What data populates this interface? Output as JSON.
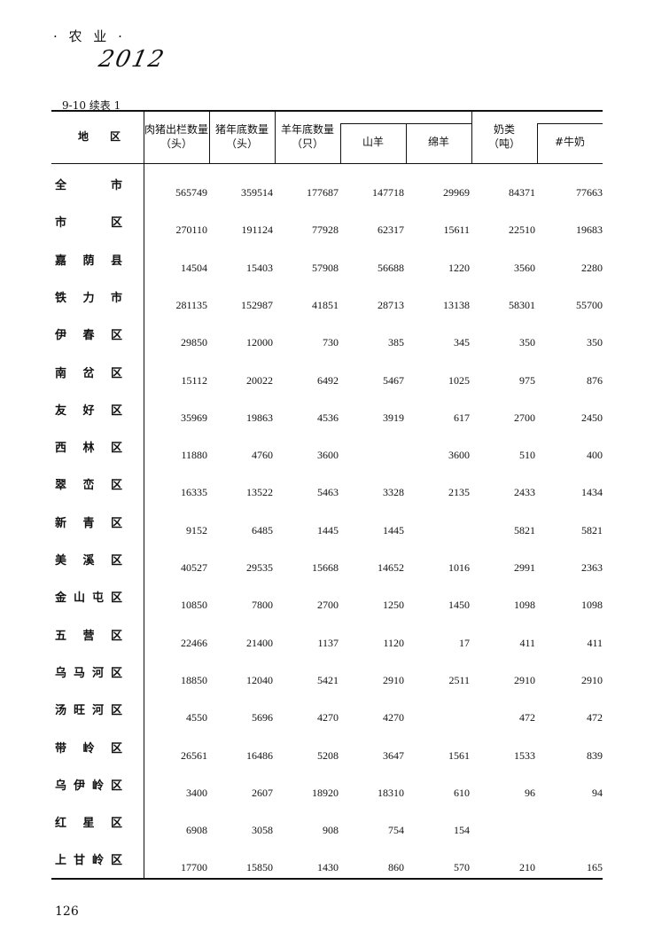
{
  "section_title": "· 农 业 ·",
  "handwritten_note": "2012",
  "table_caption": "9-10  续表 1",
  "headers": {
    "region": "地　　区",
    "pork_out": [
      "肉猪出栏数量",
      "（头）"
    ],
    "pig_stock": [
      "猪年底数量",
      "（头）"
    ],
    "sheep_stock": [
      "羊年底数量",
      "（只）"
    ],
    "goat": "山羊",
    "sheep": "绵羊",
    "milk": [
      "奶类",
      "（吨）"
    ],
    "cow_milk": "#牛奶"
  },
  "rows": [
    {
      "region": "全市",
      "values": [
        "565749",
        "359514",
        "177687",
        "147718",
        "29969",
        "84371",
        "77663"
      ]
    },
    {
      "region": "市区",
      "values": [
        "270110",
        "191124",
        "77928",
        "62317",
        "15611",
        "22510",
        "19683"
      ]
    },
    {
      "region": "嘉荫县",
      "values": [
        "14504",
        "15403",
        "57908",
        "56688",
        "1220",
        "3560",
        "2280"
      ]
    },
    {
      "region": "铁力市",
      "values": [
        "281135",
        "152987",
        "41851",
        "28713",
        "13138",
        "58301",
        "55700"
      ]
    },
    {
      "region": "伊春区",
      "values": [
        "29850",
        "12000",
        "730",
        "385",
        "345",
        "350",
        "350"
      ]
    },
    {
      "region": "南岔区",
      "values": [
        "15112",
        "20022",
        "6492",
        "5467",
        "1025",
        "975",
        "876"
      ]
    },
    {
      "region": "友好区",
      "values": [
        "35969",
        "19863",
        "4536",
        "3919",
        "617",
        "2700",
        "2450"
      ]
    },
    {
      "region": "西林区",
      "values": [
        "11880",
        "4760",
        "3600",
        "",
        "3600",
        "510",
        "400"
      ]
    },
    {
      "region": "翠峦区",
      "values": [
        "16335",
        "13522",
        "5463",
        "3328",
        "2135",
        "2433",
        "1434"
      ]
    },
    {
      "region": "新青区",
      "values": [
        "9152",
        "6485",
        "1445",
        "1445",
        "",
        "5821",
        "5821"
      ]
    },
    {
      "region": "美溪区",
      "values": [
        "40527",
        "29535",
        "15668",
        "14652",
        "1016",
        "2991",
        "2363"
      ]
    },
    {
      "region": "金山屯区",
      "values": [
        "10850",
        "7800",
        "2700",
        "1250",
        "1450",
        "1098",
        "1098"
      ]
    },
    {
      "region": "五营区",
      "values": [
        "22466",
        "21400",
        "1137",
        "1120",
        "17",
        "411",
        "411"
      ]
    },
    {
      "region": "乌马河区",
      "values": [
        "18850",
        "12040",
        "5421",
        "2910",
        "2511",
        "2910",
        "2910"
      ]
    },
    {
      "region": "汤旺河区",
      "values": [
        "4550",
        "5696",
        "4270",
        "4270",
        "",
        "472",
        "472"
      ]
    },
    {
      "region": "带岭区",
      "values": [
        "26561",
        "16486",
        "5208",
        "3647",
        "1561",
        "1533",
        "839"
      ]
    },
    {
      "region": "乌伊岭区",
      "values": [
        "3400",
        "2607",
        "18920",
        "18310",
        "610",
        "96",
        "94"
      ]
    },
    {
      "region": "红星区",
      "values": [
        "6908",
        "3058",
        "908",
        "754",
        "154",
        "",
        ""
      ]
    },
    {
      "region": "上甘岭区",
      "values": [
        "17700",
        "15850",
        "1430",
        "860",
        "570",
        "210",
        "165"
      ]
    }
  ],
  "page_number": "126"
}
